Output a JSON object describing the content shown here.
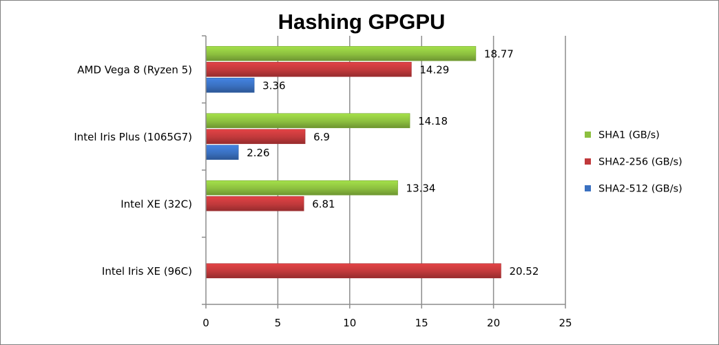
{
  "chart_data": {
    "type": "bar",
    "orientation": "horizontal",
    "title": "Hashing GPGPU",
    "xlabel": "",
    "ylabel": "",
    "xlim": [
      0,
      25
    ],
    "x_ticks": [
      "0",
      "5",
      "10",
      "15",
      "20",
      "25"
    ],
    "grid": true,
    "legend_position": "right",
    "categories": [
      "AMD Vega 8 (Ryzen 5)",
      "Intel Iris Plus (1065G7)",
      "Intel XE (32C)",
      "Intel Iris XE (96C)"
    ],
    "series": [
      {
        "name": "SHA1 (GB/s)",
        "color": "#8cbf3f",
        "values": [
          18.77,
          14.18,
          13.34,
          null
        ],
        "labels": [
          "18.77",
          "14.18",
          "13.34",
          ""
        ]
      },
      {
        "name": "SHA2-256 (GB/s)",
        "color": "#c0393b",
        "values": [
          14.29,
          6.9,
          6.81,
          20.52
        ],
        "labels": [
          "14.29",
          "6.9",
          "6.81",
          "20.52"
        ]
      },
      {
        "name": "SHA2-512 (GB/s)",
        "color": "#3a70c0",
        "values": [
          3.36,
          2.26,
          null,
          null
        ],
        "labels": [
          "3.36",
          "2.26",
          "",
          ""
        ]
      }
    ]
  }
}
